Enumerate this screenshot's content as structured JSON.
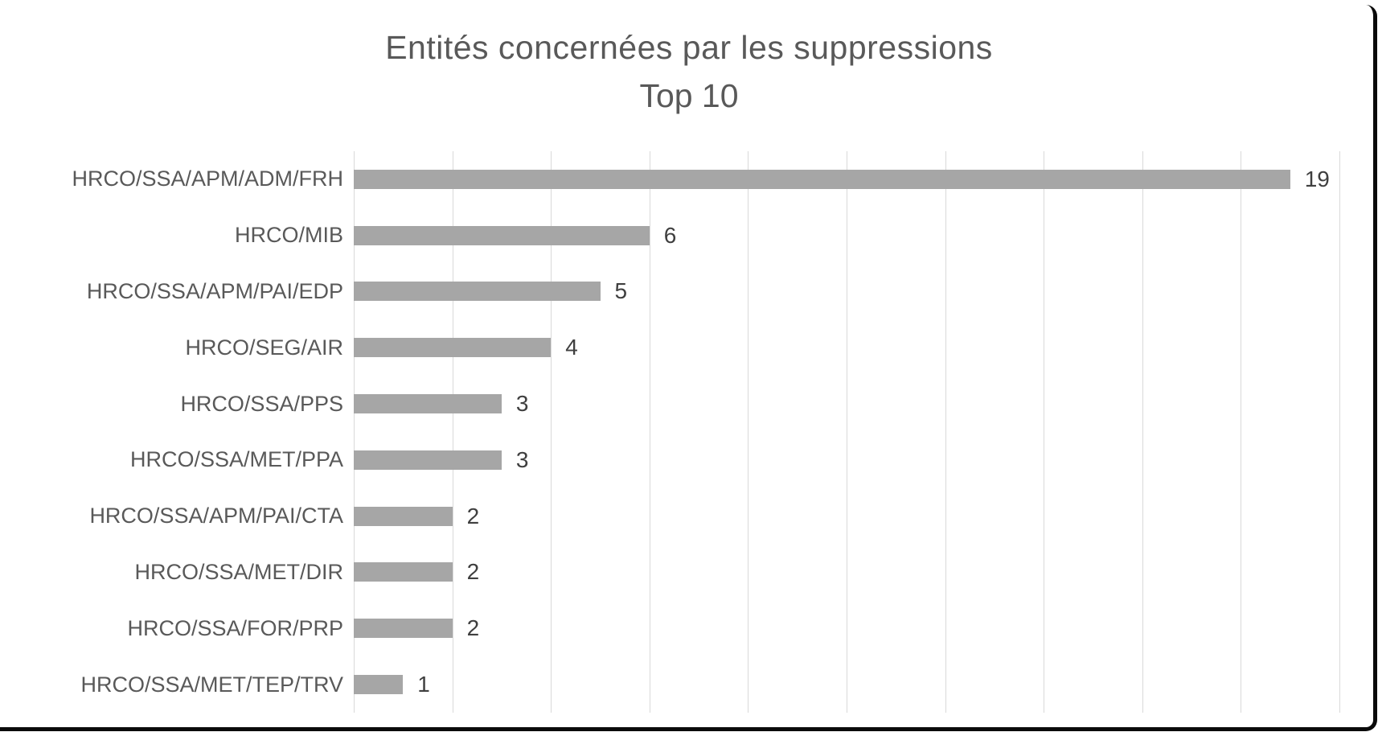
{
  "title": {
    "line1": "Entités concernées par les suppressions",
    "line2": "Top 10"
  },
  "colors": {
    "bar": "#a6a6a6",
    "gridline": "#d9d9d9",
    "title_text": "#595959",
    "category_text": "#595959",
    "value_text": "#3f3f3f",
    "frame": "#0a0a0a",
    "background": "#ffffff"
  },
  "chart_data": {
    "type": "bar",
    "orientation": "horizontal",
    "title": "Entités concernées par les suppressions",
    "subtitle": "Top 10",
    "categories": [
      "HRCO/SSA/APM/ADM/FRH",
      "HRCO/MIB",
      "HRCO/SSA/APM/PAI/EDP",
      "HRCO/SEG/AIR",
      "HRCO/SSA/PPS",
      "HRCO/SSA/MET/PPA",
      "HRCO/SSA/APM/PAI/CTA",
      "HRCO/SSA/MET/DIR",
      "HRCO/SSA/FOR/PRP",
      "HRCO/SSA/MET/TEP/TRV"
    ],
    "values": [
      19,
      6,
      5,
      4,
      3,
      3,
      2,
      2,
      2,
      1
    ],
    "data_labels": true,
    "xlabel": "",
    "ylabel": "",
    "xlim": [
      0,
      20
    ],
    "gridline_interval": 2,
    "x_tick_labels_visible": false,
    "grid": true,
    "legend": false
  }
}
